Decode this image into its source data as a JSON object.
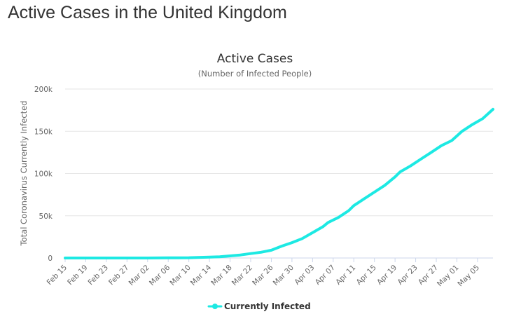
{
  "page": {
    "heading": "Active Cases in the United Kingdom"
  },
  "chart_data": {
    "type": "line",
    "title": "Active Cases",
    "subtitle": "(Number of Infected People)",
    "xlabel": "",
    "ylabel": "Total Coronavirus Currently Infected",
    "ylim": [
      0,
      200000
    ],
    "y_ticks": [
      {
        "value": 0,
        "label": "0"
      },
      {
        "value": 50000,
        "label": "50k"
      },
      {
        "value": 100000,
        "label": "100k"
      },
      {
        "value": 150000,
        "label": "150k"
      },
      {
        "value": 200000,
        "label": "200k"
      }
    ],
    "x_start": "2020-02-15",
    "x_end": "2020-05-08",
    "x_tick_labels": [
      "Feb 15",
      "Feb 19",
      "Feb 23",
      "Feb 27",
      "Mar 02",
      "Mar 06",
      "Mar 10",
      "Mar 14",
      "Mar 18",
      "Mar 22",
      "Mar 26",
      "Mar 30",
      "Apr 03",
      "Apr 07",
      "Apr 11",
      "Apr 15",
      "Apr 19",
      "Apr 23",
      "Apr 27",
      "May 01",
      "May 05"
    ],
    "grid": true,
    "legend_position": "bottom-center",
    "series": [
      {
        "name": "Currently Infected",
        "color": "#1de9e3",
        "points": [
          {
            "x": "2020-02-15",
            "y": 8
          },
          {
            "x": "2020-02-19",
            "y": 8
          },
          {
            "x": "2020-02-23",
            "y": 8
          },
          {
            "x": "2020-02-27",
            "y": 13
          },
          {
            "x": "2020-03-02",
            "y": 35
          },
          {
            "x": "2020-03-06",
            "y": 150
          },
          {
            "x": "2020-03-10",
            "y": 350
          },
          {
            "x": "2020-03-14",
            "y": 1100
          },
          {
            "x": "2020-03-16",
            "y": 1400
          },
          {
            "x": "2020-03-18",
            "y": 2500
          },
          {
            "x": "2020-03-20",
            "y": 3600
          },
          {
            "x": "2020-03-22",
            "y": 5200
          },
          {
            "x": "2020-03-24",
            "y": 6800
          },
          {
            "x": "2020-03-26",
            "y": 9200
          },
          {
            "x": "2020-03-28",
            "y": 14000
          },
          {
            "x": "2020-03-30",
            "y": 18200
          },
          {
            "x": "2020-04-01",
            "y": 23000
          },
          {
            "x": "2020-04-03",
            "y": 30000
          },
          {
            "x": "2020-04-05",
            "y": 37000
          },
          {
            "x": "2020-04-06",
            "y": 42000
          },
          {
            "x": "2020-04-08",
            "y": 48000
          },
          {
            "x": "2020-04-10",
            "y": 56000
          },
          {
            "x": "2020-04-11",
            "y": 62000
          },
          {
            "x": "2020-04-13",
            "y": 70000
          },
          {
            "x": "2020-04-15",
            "y": 78000
          },
          {
            "x": "2020-04-17",
            "y": 86000
          },
          {
            "x": "2020-04-19",
            "y": 96000
          },
          {
            "x": "2020-04-20",
            "y": 102000
          },
          {
            "x": "2020-04-22",
            "y": 109000
          },
          {
            "x": "2020-04-24",
            "y": 117000
          },
          {
            "x": "2020-04-26",
            "y": 125000
          },
          {
            "x": "2020-04-28",
            "y": 133000
          },
          {
            "x": "2020-04-30",
            "y": 139000
          },
          {
            "x": "2020-05-02",
            "y": 150000
          },
          {
            "x": "2020-05-04",
            "y": 158000
          },
          {
            "x": "2020-05-06",
            "y": 165000
          },
          {
            "x": "2020-05-08",
            "y": 176000
          }
        ]
      }
    ]
  }
}
